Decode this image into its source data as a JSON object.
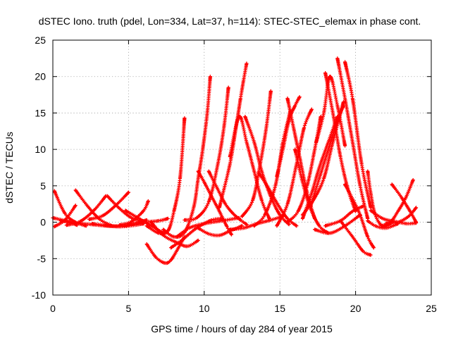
{
  "colors": {
    "series": "#ff0000",
    "grid": "#a0a0a0",
    "axis": "#000000",
    "background": "#ffffff"
  },
  "chart_data": {
    "type": "scatter",
    "marker": "plus",
    "title": "dSTEC Iono. truth (pdel, Lon=334, Lat=37, h=114): STEC-STEC_elemax in phase cont.",
    "xlabel": "GPS time / hours of day 284 of year 2015",
    "ylabel": "dSTEC  / TECUs",
    "xlim": [
      0,
      25
    ],
    "ylim": [
      -10,
      25
    ],
    "xticks": [
      0,
      5,
      10,
      15,
      20,
      25
    ],
    "yticks": [
      -10,
      -5,
      0,
      5,
      10,
      15,
      20,
      25
    ],
    "xtick_labels": [
      "0",
      "5",
      "10",
      "15",
      "20",
      "25"
    ],
    "ytick_labels": [
      "-10",
      "-5",
      "0",
      "5",
      "10",
      "15",
      "20",
      "25"
    ],
    "grid": true,
    "legend": "none",
    "series": [
      {
        "x": [
          0,
          0.8,
          1.6
        ],
        "y": [
          0.6,
          0.2,
          -0.4
        ]
      },
      {
        "x": [
          0.1,
          0.8,
          1.5,
          2.2
        ],
        "y": [
          4.3,
          1.2,
          0,
          -0.5
        ]
      },
      {
        "x": [
          0.1,
          0.8,
          1.5
        ],
        "y": [
          -0.6,
          0.3,
          2.3
        ]
      },
      {
        "x": [
          0.9,
          1.8,
          2.7,
          3.5
        ],
        "y": [
          -0.4,
          0.1,
          1.6,
          3.6
        ]
      },
      {
        "x": [
          1.5,
          2.3,
          3.1,
          3.9
        ],
        "y": [
          4.4,
          2.2,
          0.4,
          -0.5
        ]
      },
      {
        "x": [
          2.4,
          3.3,
          4.2,
          5.0
        ],
        "y": [
          0.4,
          0.9,
          2.4,
          4.1
        ]
      },
      {
        "x": [
          3.6,
          4.4,
          5.2,
          6.0
        ],
        "y": [
          3.6,
          1.9,
          0.6,
          0.1
        ]
      },
      {
        "x": [
          0.5,
          2.5,
          4.5,
          6.0
        ],
        "y": [
          0.2,
          -0.3,
          -0.6,
          -0.2
        ]
      },
      {
        "x": [
          2.6,
          3.8,
          5.0,
          6.2
        ],
        "y": [
          -0.2,
          -0.5,
          -0.4,
          0.3
        ]
      },
      {
        "x": [
          4.4,
          5.2,
          6.0,
          6.3
        ],
        "y": [
          -0.4,
          0.1,
          1.6,
          2.9
        ]
      },
      {
        "x": [
          4.8,
          5.7,
          6.5,
          7.3
        ],
        "y": [
          1.6,
          0.5,
          -0.5,
          -1.5
        ]
      },
      {
        "x": [
          5.0,
          6.0,
          7.0,
          7.6
        ],
        "y": [
          -0.3,
          0,
          0.2,
          0.5
        ]
      },
      {
        "x": [
          6.2,
          6.8,
          7.4,
          7.8,
          8.3,
          8.7
        ],
        "y": [
          -3.0,
          -4.8,
          -5.6,
          -5.2,
          -3.5,
          -2.0
        ]
      },
      {
        "x": [
          6.2,
          7.0,
          7.6,
          8.0,
          8.4,
          8.7
        ],
        "y": [
          -0.5,
          -1.5,
          -1.2,
          1.5,
          6.0,
          14.3
        ]
      },
      {
        "x": [
          6.5,
          7.3,
          8.2,
          8.9,
          9.6
        ],
        "y": [
          0,
          -1.8,
          -2.8,
          -3.3,
          -2.5
        ]
      },
      {
        "x": [
          7.3,
          8.0,
          8.7,
          9.3,
          9.6,
          9.9,
          10.2,
          10.4
        ],
        "y": [
          -1.0,
          -2.0,
          -1.4,
          2.0,
          6.0,
          10.0,
          15.0,
          20.0
        ]
      },
      {
        "x": [
          7.8,
          8.5,
          9.5,
          10.5,
          11.2
        ],
        "y": [
          -3.5,
          -2.5,
          -0.8,
          0.3,
          0.5
        ]
      },
      {
        "x": [
          8.2,
          9.0,
          10.0,
          11.2,
          12.3
        ],
        "y": [
          -2.0,
          -0.8,
          -0.2,
          0.2,
          0.6
        ]
      },
      {
        "x": [
          8.7,
          9.5,
          10.3,
          10.9,
          11.3,
          11.6
        ],
        "y": [
          0.3,
          0.6,
          2.8,
          8.0,
          13.0,
          18.5
        ]
      },
      {
        "x": [
          9.6,
          10.0,
          10.5,
          11.0,
          11.5,
          11.8
        ],
        "y": [
          7.0,
          5.5,
          3.5,
          1.5,
          -0.6,
          -1.7
        ]
      },
      {
        "x": [
          9.6,
          10.3,
          11.0,
          11.7,
          12.5
        ],
        "y": [
          -0.8,
          -1.6,
          -1.8,
          -1.2,
          -0.5
        ]
      },
      {
        "x": [
          10.3,
          10.9,
          11.4,
          11.9,
          12.4,
          12.8
        ],
        "y": [
          7.0,
          4.5,
          2.5,
          1.2,
          0.3,
          -0.3
        ]
      },
      {
        "x": [
          11.0,
          11.7,
          12.1,
          12.4,
          12.6,
          12.8
        ],
        "y": [
          2.0,
          8.0,
          13.0,
          17.0,
          19.5,
          21.8
        ]
      },
      {
        "x": [
          11.7,
          12.3,
          12.8,
          13.3,
          13.8,
          14.3
        ],
        "y": [
          9.0,
          14.5,
          11.0,
          7.0,
          3.0,
          0.5
        ]
      },
      {
        "x": [
          12.5,
          13.2,
          13.7,
          14.1,
          14.4
        ],
        "y": [
          0.8,
          3.0,
          8.0,
          13.0,
          18.0
        ]
      },
      {
        "x": [
          12.7,
          13.3,
          13.8,
          14.4,
          15.0,
          15.6
        ],
        "y": [
          14.5,
          11.0,
          7.0,
          3.5,
          1.0,
          -0.3
        ]
      },
      {
        "x": [
          11.7,
          12.6,
          13.5,
          14.4,
          15.2
        ],
        "y": [
          -1.0,
          -0.8,
          -0.2,
          0.3,
          0.8
        ]
      },
      {
        "x": [
          13.3,
          14.0,
          14.7,
          15.2,
          15.7
        ],
        "y": [
          -0.5,
          1.0,
          5.0,
          11.0,
          15.3
        ]
      },
      {
        "x": [
          13.6,
          14.3,
          14.9,
          15.5,
          16.1
        ],
        "y": [
          6.8,
          4.5,
          2.3,
          0.5,
          -0.5
        ]
      },
      {
        "x": [
          14.8,
          15.2,
          15.6,
          16.0,
          16.3
        ],
        "y": [
          6.3,
          10.0,
          14.0,
          16.0,
          17.2
        ]
      },
      {
        "x": [
          15.5,
          15.9,
          16.3,
          16.8,
          17.3
        ],
        "y": [
          17.0,
          13.0,
          9.0,
          4.0,
          0.5
        ]
      },
      {
        "x": [
          14.8,
          15.5,
          16.1,
          16.6,
          17.1
        ],
        "y": [
          -0.5,
          2.5,
          8.0,
          13.0,
          15.5
        ]
      },
      {
        "x": [
          16.0,
          16.5,
          17.0,
          17.6,
          18.2
        ],
        "y": [
          10.0,
          5.5,
          2.0,
          -0.5,
          -1.5
        ]
      },
      {
        "x": [
          15.5,
          16.2,
          16.8,
          17.3,
          17.7
        ],
        "y": [
          0,
          1.5,
          5.0,
          10.0,
          14.5
        ]
      },
      {
        "x": [
          16.5,
          17.1,
          17.6,
          18.2,
          18.8
        ],
        "y": [
          0.5,
          4.0,
          7.5,
          11.0,
          14.5
        ]
      },
      {
        "x": [
          17.0,
          17.6,
          18.2,
          18.8,
          19.2
        ],
        "y": [
          2.0,
          6.0,
          10.0,
          14.0,
          16.0
        ]
      },
      {
        "x": [
          16.5,
          17.2,
          17.9,
          18.5,
          19.2
        ],
        "y": [
          1.0,
          3.0,
          6.0,
          11.0,
          16.5
        ]
      },
      {
        "x": [
          17.4,
          17.9,
          18.3,
          18.8,
          19.3
        ],
        "y": [
          11.0,
          15.0,
          20.0,
          16.0,
          10.5
        ]
      },
      {
        "x": [
          18.0,
          18.5,
          19.0,
          19.5,
          20.0
        ],
        "y": [
          20.5,
          15.0,
          9.0,
          4.5,
          1.5
        ]
      },
      {
        "x": [
          18.8,
          19.3,
          19.8,
          20.3,
          20.8
        ],
        "y": [
          22.5,
          17.0,
          11.0,
          5.0,
          0.5
        ]
      },
      {
        "x": [
          19.3,
          19.8,
          20.4,
          21.0
        ],
        "y": [
          22.0,
          17.0,
          8.0,
          2.0
        ]
      },
      {
        "x": [
          17.3,
          18.3,
          19.3,
          20.3
        ],
        "y": [
          -1.0,
          -1.5,
          -0.5,
          1.0
        ]
      },
      {
        "x": [
          18.0,
          19.0,
          19.8,
          20.5
        ],
        "y": [
          -0.5,
          0.2,
          1.5,
          2.2
        ]
      },
      {
        "x": [
          19.0,
          19.8,
          20.5,
          21.0
        ],
        "y": [
          0.2,
          -2.0,
          -4.0,
          -4.5
        ]
      },
      {
        "x": [
          19.3,
          20.2,
          20.8,
          21.2
        ],
        "y": [
          5.2,
          1.5,
          -2.0,
          -3.5
        ]
      },
      {
        "x": [
          20.8,
          21.0,
          21.3,
          21.8,
          22.3
        ],
        "y": [
          7.0,
          4.0,
          1.0,
          -0.6,
          -0.2
        ]
      },
      {
        "x": [
          20.8,
          21.3,
          22.0,
          22.8
        ],
        "y": [
          0.2,
          -0.5,
          -0.8,
          -0.2
        ]
      },
      {
        "x": [
          21.0,
          21.8,
          22.6,
          23.4,
          24.0
        ],
        "y": [
          1.6,
          0.5,
          0.1,
          -0.2,
          -0.1
        ]
      },
      {
        "x": [
          22.4,
          23.0,
          23.6,
          24.0
        ],
        "y": [
          5.2,
          3.5,
          1.5,
          0
        ]
      },
      {
        "x": [
          21.7,
          22.3,
          22.8,
          23.3,
          23.8
        ],
        "y": [
          -0.5,
          0,
          1.5,
          3.3,
          5.8
        ]
      },
      {
        "x": [
          22.0,
          22.8,
          23.5,
          24.0
        ],
        "y": [
          -0.2,
          0,
          0.8,
          2.0
        ]
      }
    ]
  }
}
